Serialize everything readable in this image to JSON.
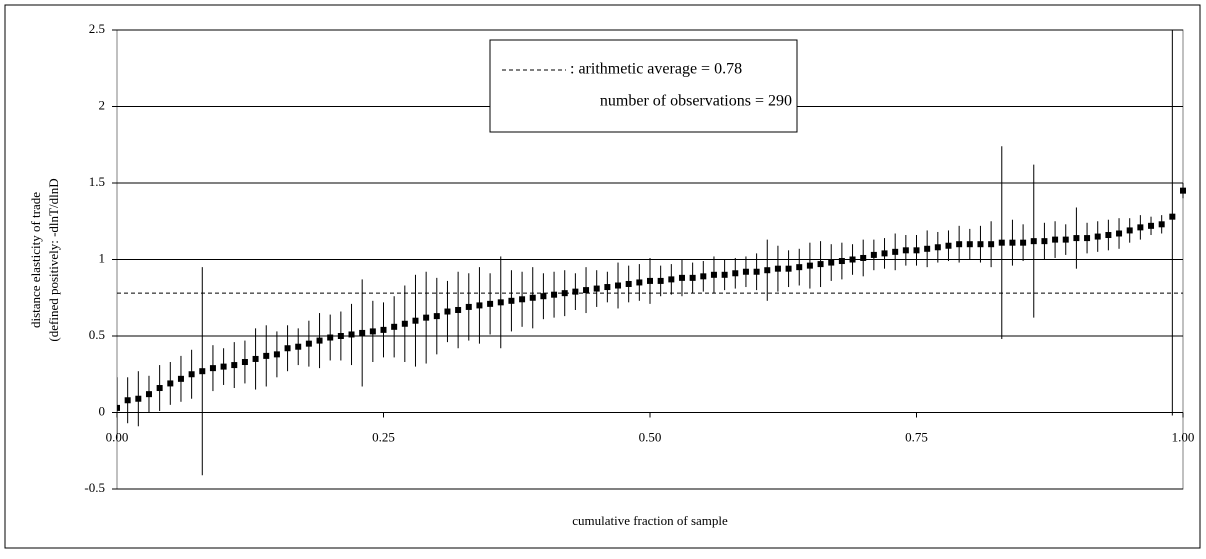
{
  "chart_data": {
    "type": "errorbar",
    "xlabel": "cumulative fraction of sample",
    "ylabel": [
      "distance elasticity of trade",
      "(defined positively: -dlnT/dlnD"
    ],
    "legend_lines": [
      ":  arithmetic average = 0.78",
      "number of observations = 290"
    ],
    "average": 0.78,
    "xlim": [
      0,
      1
    ],
    "ylim": [
      -0.5,
      2.5
    ],
    "xticks": [
      {
        "value": 0,
        "label": "0.00"
      },
      0.25,
      {
        "value": 0.5,
        "label": "0.50"
      },
      0.75,
      {
        "value": 1,
        "label": "1.00"
      }
    ],
    "yticks": [
      -0.5,
      0,
      0.5,
      1,
      1.5,
      2,
      2.5
    ],
    "grid": true,
    "color": "#000000",
    "x": [
      0,
      0.01,
      0.02,
      0.03,
      0.04,
      0.05,
      0.06,
      0.07,
      0.08,
      0.09,
      0.1,
      0.11,
      0.12,
      0.13,
      0.14,
      0.15,
      0.16,
      0.17,
      0.18,
      0.19,
      0.2,
      0.21,
      0.22,
      0.23,
      0.24,
      0.25,
      0.26,
      0.27,
      0.28,
      0.29,
      0.3,
      0.31,
      0.32,
      0.33,
      0.34,
      0.35,
      0.36,
      0.37,
      0.38,
      0.39,
      0.4,
      0.41,
      0.42,
      0.43,
      0.44,
      0.45,
      0.46,
      0.47,
      0.48,
      0.49,
      0.5,
      0.51,
      0.52,
      0.53,
      0.54,
      0.55,
      0.56,
      0.57,
      0.58,
      0.59,
      0.6,
      0.61,
      0.62,
      0.63,
      0.64,
      0.65,
      0.66,
      0.67,
      0.68,
      0.69,
      0.7,
      0.71,
      0.72,
      0.73,
      0.74,
      0.75,
      0.76,
      0.77,
      0.78,
      0.79,
      0.8,
      0.81,
      0.82,
      0.83,
      0.84,
      0.85,
      0.86,
      0.87,
      0.88,
      0.89,
      0.9,
      0.91,
      0.92,
      0.93,
      0.94,
      0.95,
      0.96,
      0.97,
      0.98,
      0.99,
      1
    ],
    "values": [
      0.03,
      0.08,
      0.09,
      0.12,
      0.16,
      0.19,
      0.22,
      0.25,
      0.27,
      0.29,
      0.3,
      0.31,
      0.33,
      0.35,
      0.37,
      0.38,
      0.42,
      0.43,
      0.45,
      0.47,
      0.49,
      0.5,
      0.51,
      0.52,
      0.53,
      0.54,
      0.56,
      0.58,
      0.6,
      0.62,
      0.63,
      0.66,
      0.67,
      0.69,
      0.7,
      0.71,
      0.72,
      0.73,
      0.74,
      0.75,
      0.76,
      0.77,
      0.78,
      0.79,
      0.8,
      0.81,
      0.82,
      0.83,
      0.84,
      0.85,
      0.86,
      0.86,
      0.87,
      0.88,
      0.88,
      0.89,
      0.9,
      0.9,
      0.91,
      0.92,
      0.92,
      0.93,
      0.94,
      0.94,
      0.95,
      0.96,
      0.97,
      0.98,
      0.99,
      1,
      1.01,
      1.03,
      1.04,
      1.05,
      1.06,
      1.06,
      1.07,
      1.08,
      1.09,
      1.1,
      1.1,
      1.1,
      1.1,
      1.11,
      1.11,
      1.11,
      1.12,
      1.12,
      1.13,
      1.13,
      1.14,
      1.14,
      1.15,
      1.16,
      1.17,
      1.19,
      1.21,
      1.22,
      1.23,
      1.28,
      1.45
    ],
    "errors": [
      0.2,
      0.15,
      0.18,
      0.12,
      0.15,
      0.14,
      0.15,
      0.16,
      0.68,
      0.15,
      0.12,
      0.15,
      0.14,
      0.2,
      0.2,
      0.15,
      0.15,
      0.12,
      0.15,
      0.18,
      0.15,
      0.16,
      0.2,
      0.35,
      0.2,
      0.18,
      0.2,
      0.25,
      0.3,
      0.3,
      0.25,
      0.2,
      0.25,
      0.22,
      0.25,
      0.2,
      0.3,
      0.2,
      0.18,
      0.2,
      0.15,
      0.15,
      0.15,
      0.12,
      0.15,
      0.12,
      0.1,
      0.15,
      0.12,
      0.12,
      0.15,
      0.1,
      0.1,
      0.12,
      0.1,
      0.1,
      0.12,
      0.1,
      0.1,
      0.1,
      0.12,
      0.2,
      0.15,
      0.12,
      0.12,
      0.15,
      0.15,
      0.12,
      0.12,
      0.1,
      0.12,
      0.1,
      0.1,
      0.12,
      0.1,
      0.1,
      0.12,
      0.1,
      0.1,
      0.12,
      0.1,
      0.12,
      0.15,
      0.63,
      0.15,
      0.12,
      0.5,
      0.12,
      0.12,
      0.1,
      0.2,
      0.1,
      0.1,
      0.1,
      0.1,
      0.08,
      0.08,
      0.06,
      0.06,
      1.3,
      0.05
    ]
  }
}
